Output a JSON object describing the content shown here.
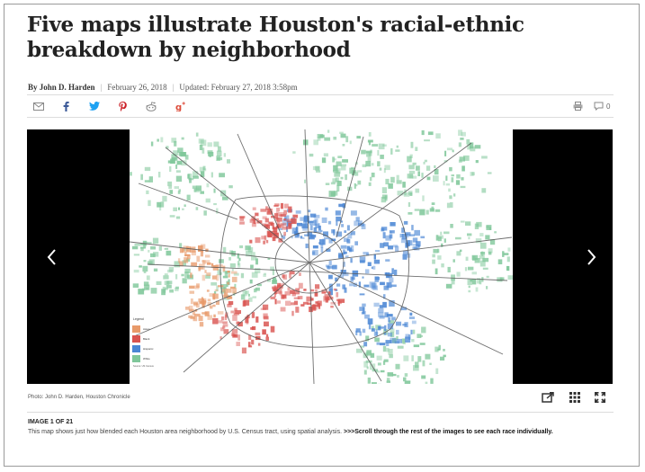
{
  "article": {
    "headline": "Five maps illustrate Houston's racial-ethnic breakdown by neighborhood",
    "byline": {
      "author": "By John D. Harden",
      "published": "February 26, 2018",
      "updated": "Updated: February 27, 2018 3:58pm"
    }
  },
  "share_bar": {
    "icons": [
      "email-icon",
      "facebook-icon",
      "twitter-icon",
      "pinterest-icon",
      "reddit-icon",
      "google-plus-icon"
    ],
    "comment_count": "0",
    "colors": {
      "facebook": "#3b5998",
      "twitter": "#1da1f2",
      "pinterest": "#cb2027",
      "google_plus": "#dd4b39",
      "gray": "#888888"
    }
  },
  "gallery": {
    "prev_icon": "chevron-left-icon",
    "next_icon": "chevron-right-icon",
    "photo_credit": "Photo: John D. Harden, Houston Chronicle",
    "counter": "IMAGE 1 OF 21",
    "caption": "This map shows just how blended each Houston area neighborhood by U.S. Census tract, using spatial analysis.",
    "caption_cta": ">>>Scroll through the rest of the images to see each race individually.",
    "tool_icons": [
      "share-external-icon",
      "grid-icon",
      "fullscreen-icon"
    ],
    "map_legend": {
      "title": "Legend",
      "items": [
        {
          "label": "Asian",
          "color": "#e89a6a"
        },
        {
          "label": "Black",
          "color": "#d9534f"
        },
        {
          "label": "Hispanic",
          "color": "#4a86d4"
        },
        {
          "label": "White",
          "color": "#7fc79a"
        }
      ],
      "source": "Source: US Census"
    }
  }
}
